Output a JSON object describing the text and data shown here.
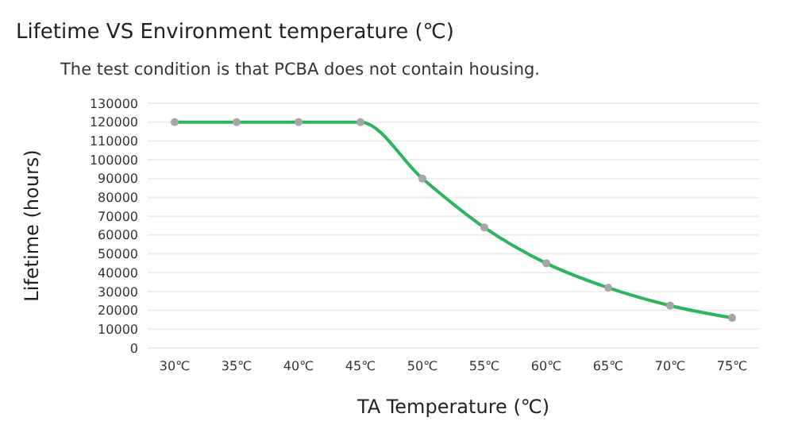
{
  "chart_data": {
    "type": "line",
    "title": "Lifetime VS Environment temperature (℃)",
    "subtitle": "The test condition is that PCBA does not contain housing.",
    "xlabel": "TA Temperature (℃)",
    "ylabel": "Lifetime (hours)",
    "categories": [
      "30℃",
      "35℃",
      "40℃",
      "45℃",
      "50℃",
      "55℃",
      "60℃",
      "65℃",
      "70℃",
      "75℃"
    ],
    "series": [
      {
        "color": "#2db55d",
        "values": [
          120000,
          120000,
          120000,
          120000,
          90000,
          64000,
          45000,
          32000,
          22500,
          16000
        ]
      }
    ],
    "ylim": [
      0,
      130000
    ],
    "yticks": [
      0,
      10000,
      20000,
      30000,
      40000,
      50000,
      60000,
      70000,
      80000,
      90000,
      100000,
      110000,
      120000,
      130000
    ],
    "grid": "y",
    "marker": "circle",
    "line_style": "solid"
  }
}
